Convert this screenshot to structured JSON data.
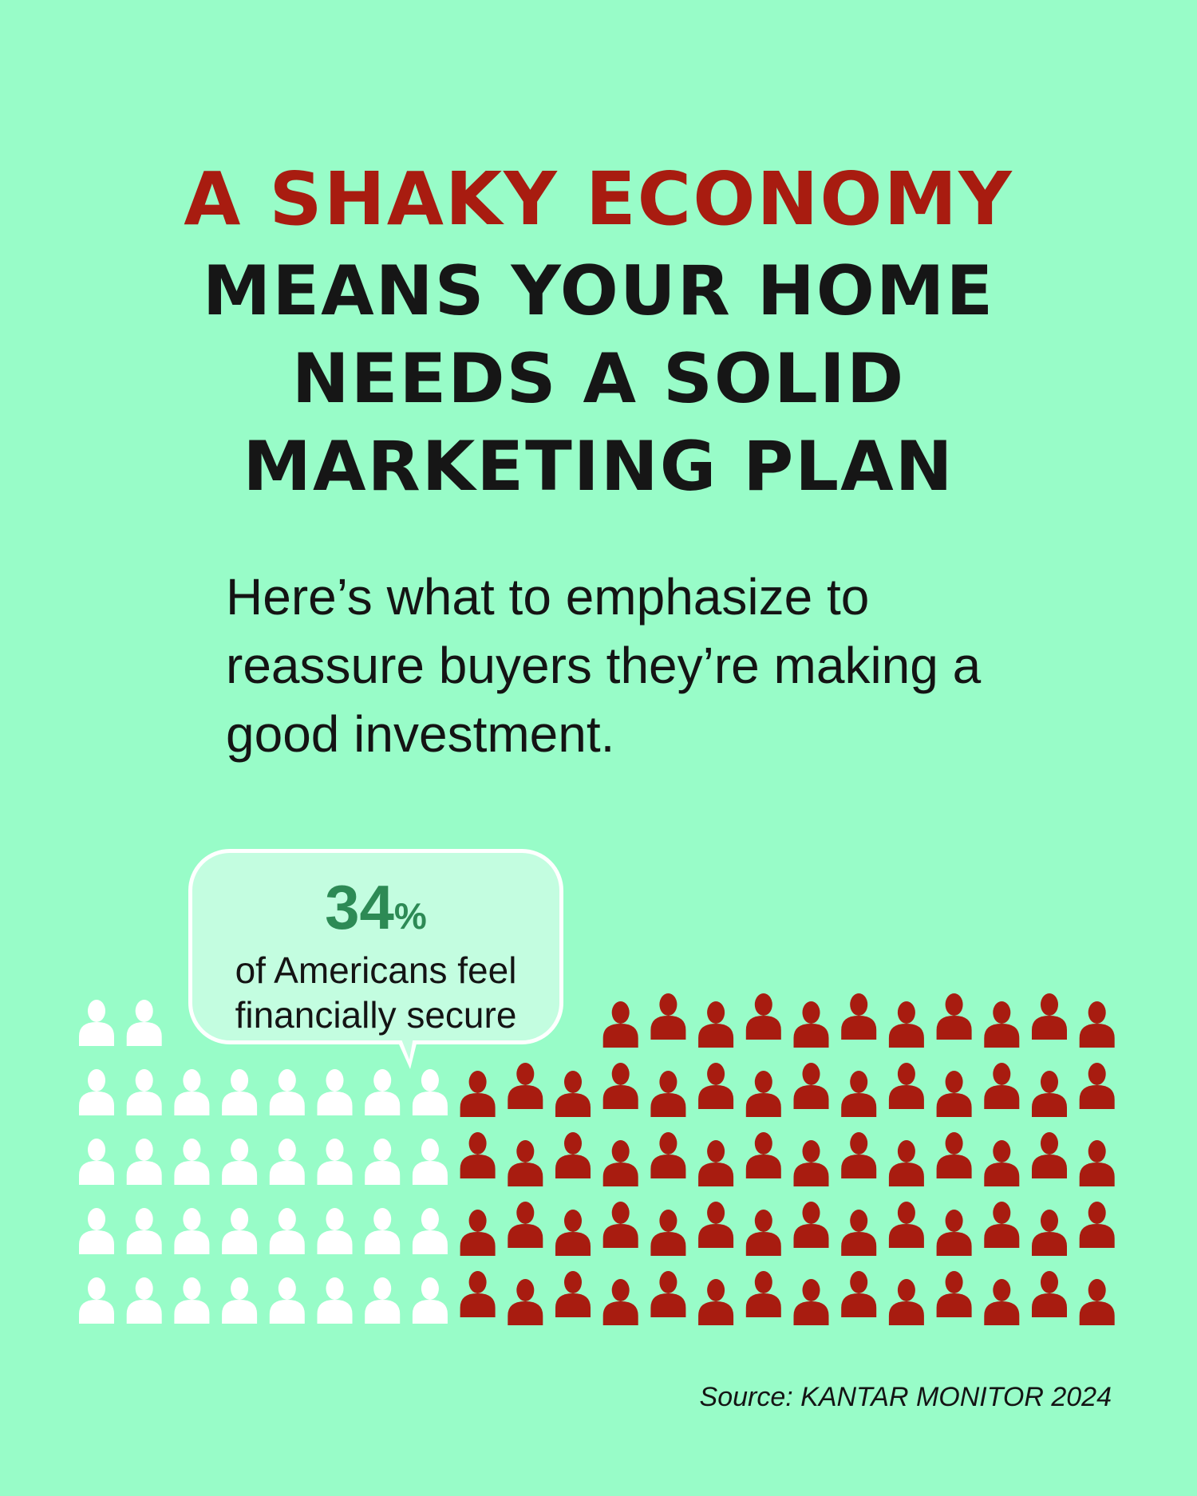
{
  "title": {
    "line1": "A SHAKY ECONOMY",
    "line2": "MEANS YOUR HOME",
    "line3": "NEEDS A SOLID",
    "line4": "MARKETING PLAN"
  },
  "subtitle": "Here’s what to emphasize to reassure buyers they’re making a good investment.",
  "callout": {
    "value": "34",
    "unit": "%",
    "line1": "of Americans feel",
    "line2": "financially secure"
  },
  "source": "Source: KANTAR MONITOR 2024",
  "colors": {
    "background": "#98fcc8",
    "accent_red": "#a81c10",
    "secure_white": "#ffffff",
    "percent_green": "#2d8a55"
  },
  "chart_data": {
    "type": "pictogram",
    "icon": "person-icon",
    "rows": [
      {
        "secure": 2,
        "not_secure": 11
      },
      {
        "secure": 8,
        "not_secure": 14
      },
      {
        "secure": 8,
        "not_secure": 14
      },
      {
        "secure": 8,
        "not_secure": 14
      },
      {
        "secure": 8,
        "not_secure": 14
      }
    ],
    "highlight_percent": 34
  }
}
